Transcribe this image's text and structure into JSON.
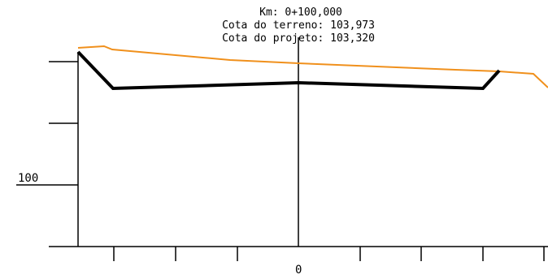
{
  "section_view": {
    "info": {
      "km": "Km: 0+100,000",
      "terrain_elevation": "Cota do terreno: 103,973",
      "project_elevation": "Cota do projeto: 103,320"
    },
    "axis": {
      "elevation_label": "100",
      "offset_label": "0"
    },
    "colors": {
      "terrain_line": "#f0901c",
      "project_line": "#000000",
      "axes": "#000000",
      "background": "#ffffff"
    }
  }
}
